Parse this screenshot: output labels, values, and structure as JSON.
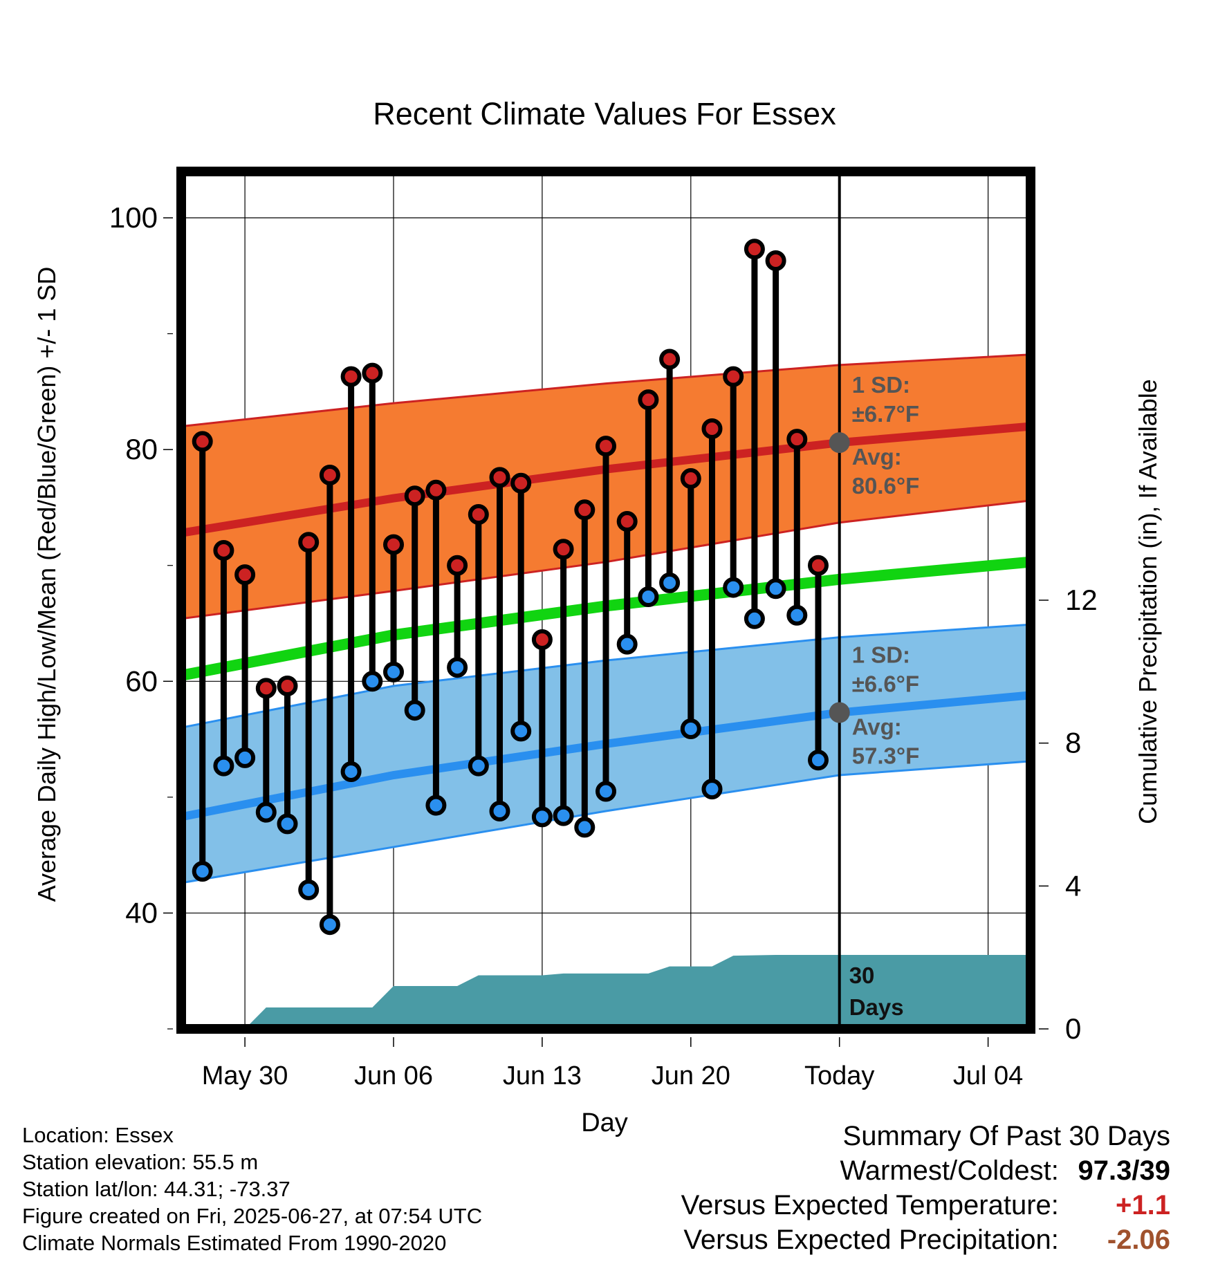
{
  "chart_data": {
    "type": "line",
    "title": "Recent Climate Values For Essex",
    "xlabel": "Day",
    "ylabel": "Average Daily High/Low/Mean (Red/Blue/Green) +/- 1 SD",
    "y2label": "Cumulative Precipitation (in), If Available",
    "x_range": [
      "2025-05-27",
      "2025-07-06"
    ],
    "ylim": [
      30,
      104
    ],
    "y2lim": [
      0,
      24
    ],
    "y_ticks": [
      40,
      60,
      80,
      100
    ],
    "y2_ticks": [
      0,
      4,
      8,
      12
    ],
    "x_tick_dates": [
      "2025-05-30",
      "2025-06-06",
      "2025-06-13",
      "2025-06-20",
      "2025-06-27",
      "2025-07-04"
    ],
    "x_tick_labels": [
      "May 30",
      "Jun 06",
      "Jun 13",
      "Jun 20",
      "Today",
      "Jul 04"
    ],
    "today": "2025-06-27",
    "grid": true,
    "normals": {
      "dates": [
        "2025-05-27",
        "2025-06-06",
        "2025-06-16",
        "2025-06-27",
        "2025-07-06"
      ],
      "high_mean": [
        72.8,
        75.8,
        78.3,
        80.6,
        82.0
      ],
      "high_upper": [
        82.0,
        84.0,
        85.7,
        87.3,
        88.2
      ],
      "high_lower": [
        65.4,
        67.8,
        70.3,
        73.7,
        75.6
      ],
      "low_mean": [
        48.3,
        51.9,
        54.6,
        57.3,
        58.8
      ],
      "low_upper": [
        56.0,
        59.6,
        61.8,
        63.8,
        64.9
      ],
      "low_lower": [
        42.6,
        45.7,
        48.8,
        51.9,
        53.1
      ],
      "mean": [
        60.5,
        64.0,
        66.5,
        68.8,
        70.3
      ]
    },
    "series": [
      {
        "name": "High",
        "color": "#cc2222",
        "dates": [
          "2025-05-28",
          "2025-05-29",
          "2025-05-30",
          "2025-05-31",
          "2025-06-01",
          "2025-06-02",
          "2025-06-03",
          "2025-06-04",
          "2025-06-05",
          "2025-06-06",
          "2025-06-07",
          "2025-06-08",
          "2025-06-09",
          "2025-06-10",
          "2025-06-11",
          "2025-06-12",
          "2025-06-13",
          "2025-06-14",
          "2025-06-15",
          "2025-06-16",
          "2025-06-17",
          "2025-06-18",
          "2025-06-19",
          "2025-06-20",
          "2025-06-21",
          "2025-06-22",
          "2025-06-23",
          "2025-06-24",
          "2025-06-25",
          "2025-06-26"
        ],
        "values": [
          80.7,
          71.3,
          69.2,
          59.4,
          59.6,
          72.0,
          77.8,
          86.3,
          86.6,
          71.8,
          76.0,
          76.5,
          70.0,
          74.4,
          77.6,
          77.1,
          63.6,
          71.4,
          74.8,
          80.3,
          73.8,
          84.3,
          87.8,
          77.5,
          81.8,
          86.3,
          97.3,
          96.3,
          80.9,
          70.0
        ]
      },
      {
        "name": "Low",
        "color": "#2a8fef",
        "dates": [
          "2025-05-28",
          "2025-05-29",
          "2025-05-30",
          "2025-05-31",
          "2025-06-01",
          "2025-06-02",
          "2025-06-03",
          "2025-06-04",
          "2025-06-05",
          "2025-06-06",
          "2025-06-07",
          "2025-06-08",
          "2025-06-09",
          "2025-06-10",
          "2025-06-11",
          "2025-06-12",
          "2025-06-13",
          "2025-06-14",
          "2025-06-15",
          "2025-06-16",
          "2025-06-17",
          "2025-06-18",
          "2025-06-19",
          "2025-06-20",
          "2025-06-21",
          "2025-06-22",
          "2025-06-23",
          "2025-06-24",
          "2025-06-25",
          "2025-06-26"
        ],
        "values": [
          43.6,
          52.7,
          53.4,
          48.7,
          47.7,
          42.0,
          39.0,
          52.2,
          60.0,
          60.8,
          57.5,
          49.3,
          61.2,
          52.7,
          48.8,
          55.7,
          48.3,
          48.4,
          47.4,
          50.5,
          63.2,
          67.3,
          68.5,
          55.9,
          50.7,
          68.1,
          65.4,
          68.0,
          65.7,
          53.2
        ]
      }
    ],
    "precipitation": {
      "color": "#4a9ba5",
      "dates": [
        "2025-05-30",
        "2025-05-31",
        "2025-06-05",
        "2025-06-06",
        "2025-06-09",
        "2025-06-10",
        "2025-06-13",
        "2025-06-14",
        "2025-06-18",
        "2025-06-19",
        "2025-06-21",
        "2025-06-22",
        "2025-06-24",
        "2025-06-27",
        "2025-07-06"
      ],
      "values": [
        0.0,
        0.6,
        0.6,
        1.2,
        1.2,
        1.5,
        1.5,
        1.55,
        1.55,
        1.75,
        1.75,
        2.05,
        2.07,
        2.07,
        2.07
      ]
    },
    "annotations": {
      "high_sd_label": "1 SD:",
      "high_sd_value": "±6.7°F",
      "high_avg_label": "Avg:",
      "high_avg_value": "80.6°F",
      "today_high_avg": 80.6,
      "low_sd_label": "1 SD:",
      "low_sd_value": "±6.6°F",
      "low_avg_label": "Avg:",
      "low_avg_value": "57.3°F",
      "today_low_avg": 57.3,
      "window_label_1": "30",
      "window_label_2": "Days"
    }
  },
  "info": {
    "location": "Location: Essex",
    "elevation": "Station elevation: 55.5 m",
    "latlon": "Station lat/lon: 44.31; -73.37",
    "created": "Figure created on Fri, 2025-06-27, at 07:54 UTC",
    "normals": "Climate Normals Estimated From 1990-2020"
  },
  "summary": {
    "title": "Summary Of Past 30 Days",
    "warm_cold_label": "Warmest/Coldest:",
    "warm_cold_value": "97.3/39",
    "temp_label": "Versus Expected Temperature:",
    "temp_value": "+1.1",
    "temp_color": "#cc2222",
    "precip_label": "Versus Expected Precipitation:",
    "precip_value": "-2.06",
    "precip_color": "#a0522d"
  }
}
